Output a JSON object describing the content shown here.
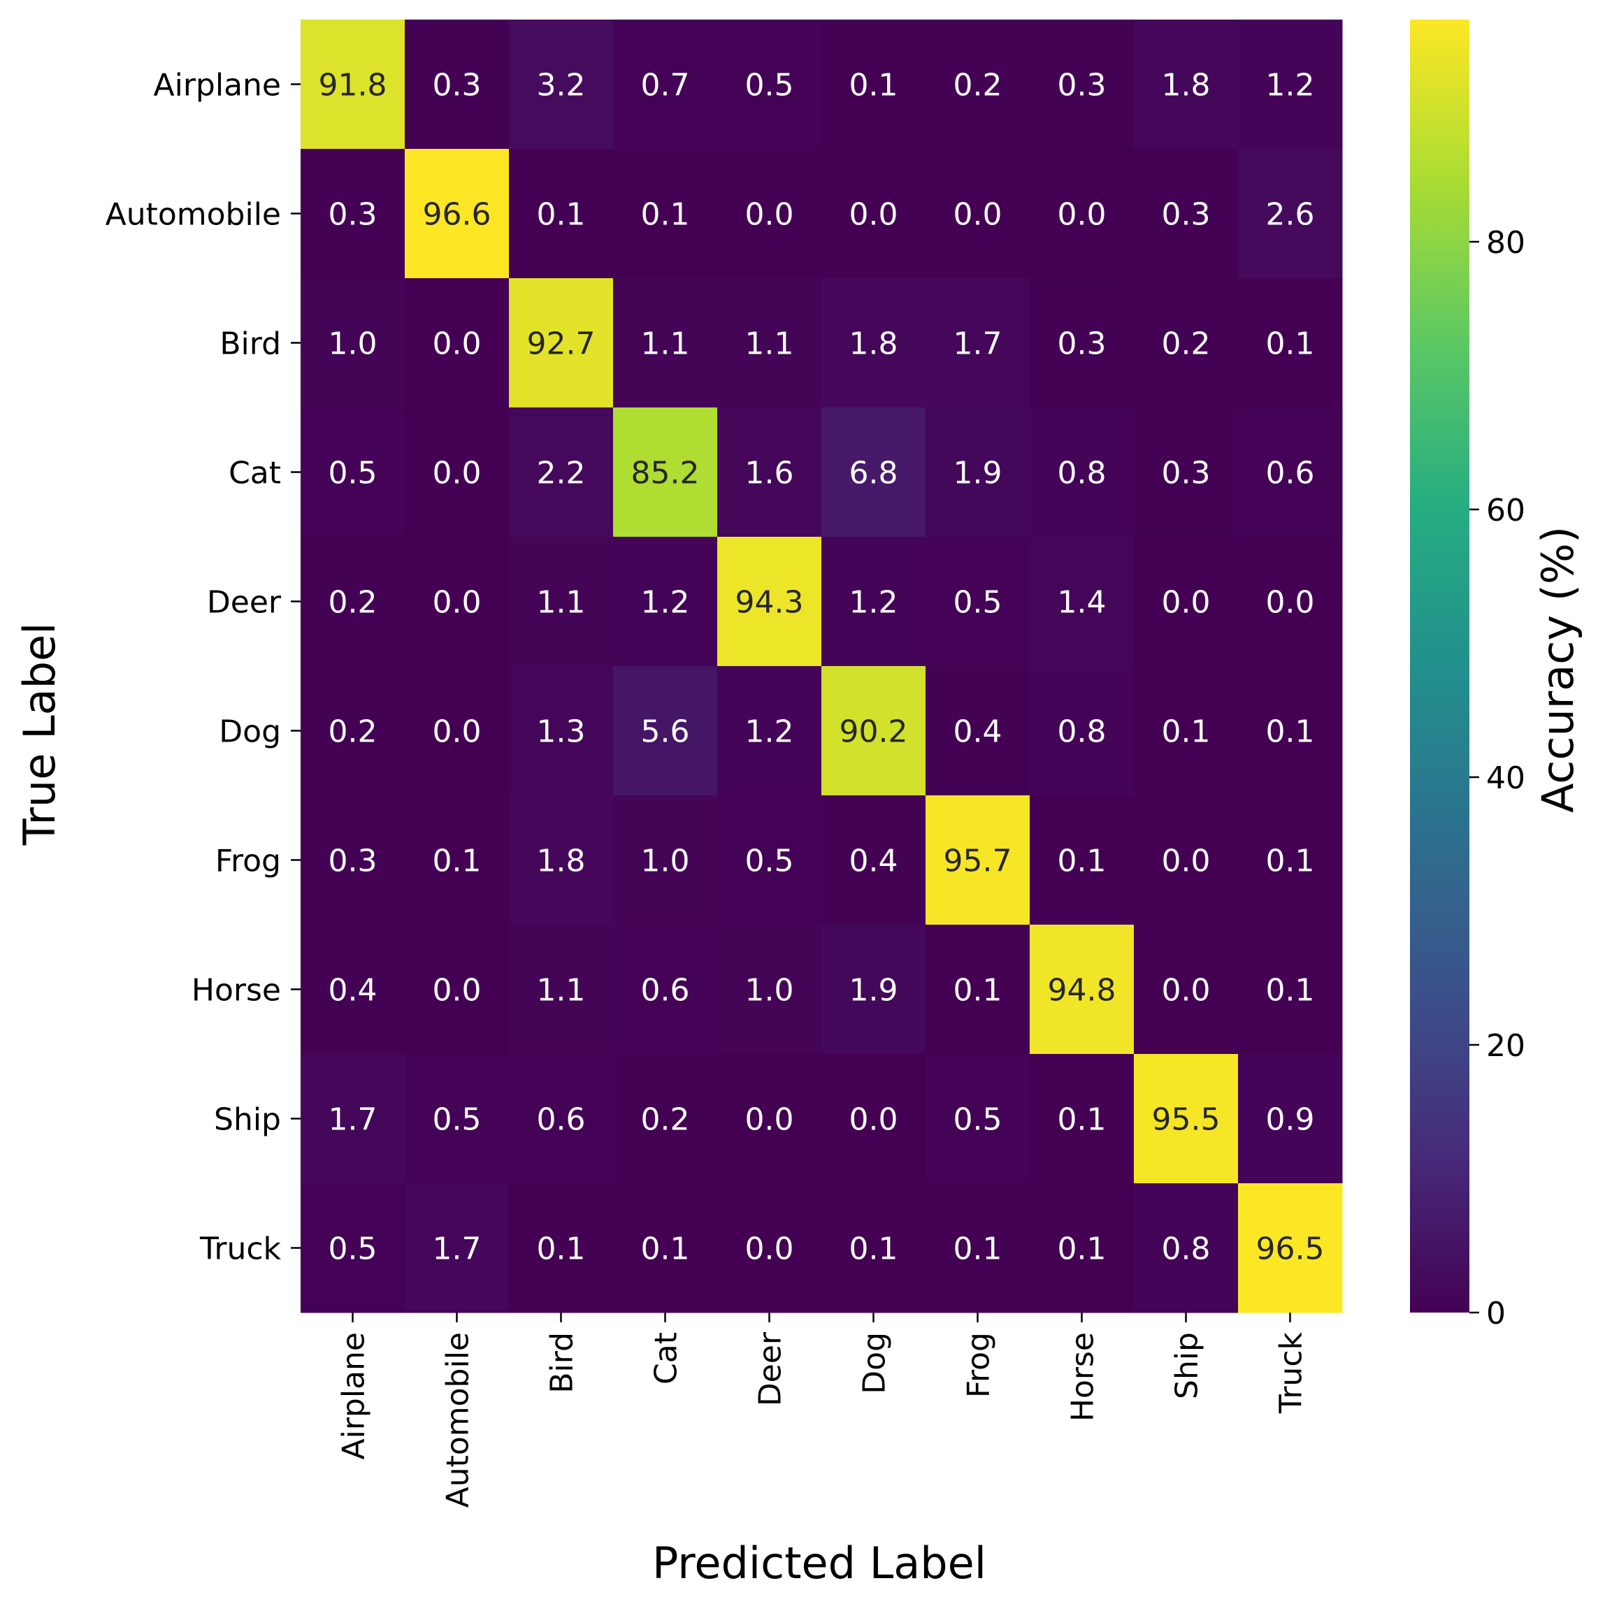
{
  "chart_data": {
    "type": "heatmap",
    "xlabel": "Predicted Label",
    "ylabel": "True Label",
    "colorbar_label": "Accuracy (%)",
    "colormap": "viridis",
    "value_range": [
      0,
      96.6
    ],
    "colorbar_ticks": [
      0,
      20,
      40,
      60,
      80
    ],
    "x_categories": [
      "Airplane",
      "Automobile",
      "Bird",
      "Cat",
      "Deer",
      "Dog",
      "Frog",
      "Horse",
      "Ship",
      "Truck"
    ],
    "y_categories": [
      "Airplane",
      "Automobile",
      "Bird",
      "Cat",
      "Deer",
      "Dog",
      "Frog",
      "Horse",
      "Ship",
      "Truck"
    ],
    "values": [
      [
        91.8,
        0.3,
        3.2,
        0.7,
        0.5,
        0.1,
        0.2,
        0.3,
        1.8,
        1.2
      ],
      [
        0.3,
        96.6,
        0.1,
        0.1,
        0.0,
        0.0,
        0.0,
        0.0,
        0.3,
        2.6
      ],
      [
        1.0,
        0.0,
        92.7,
        1.1,
        1.1,
        1.8,
        1.7,
        0.3,
        0.2,
        0.1
      ],
      [
        0.5,
        0.0,
        2.2,
        85.2,
        1.6,
        6.8,
        1.9,
        0.8,
        0.3,
        0.6
      ],
      [
        0.2,
        0.0,
        1.1,
        1.2,
        94.3,
        1.2,
        0.5,
        1.4,
        0.0,
        0.0
      ],
      [
        0.2,
        0.0,
        1.3,
        5.6,
        1.2,
        90.2,
        0.4,
        0.8,
        0.1,
        0.1
      ],
      [
        0.3,
        0.1,
        1.8,
        1.0,
        0.5,
        0.4,
        95.7,
        0.1,
        0.0,
        0.1
      ],
      [
        0.4,
        0.0,
        1.1,
        0.6,
        1.0,
        1.9,
        0.1,
        94.8,
        0.0,
        0.1
      ],
      [
        1.7,
        0.5,
        0.6,
        0.2,
        0.0,
        0.0,
        0.5,
        0.1,
        95.5,
        0.9
      ],
      [
        0.5,
        1.7,
        0.1,
        0.1,
        0.0,
        0.1,
        0.1,
        0.1,
        0.8,
        96.5
      ]
    ]
  }
}
